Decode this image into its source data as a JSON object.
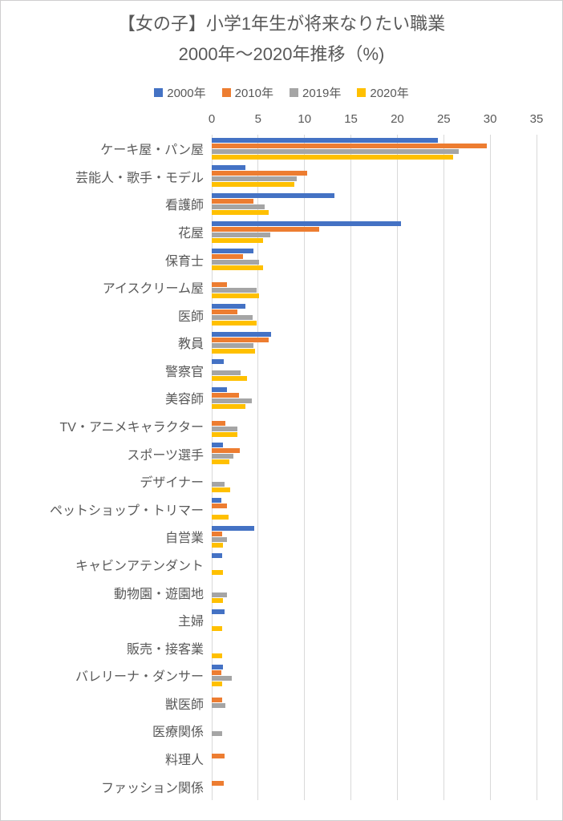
{
  "title": {
    "line1": "【女の子】小学1年生が将来なりたい職業",
    "line2": "2000年～2020年推移（%)"
  },
  "legend": [
    {
      "label": "2000年",
      "color": "#4472C4"
    },
    {
      "label": "2010年",
      "color": "#ED7D31"
    },
    {
      "label": "2019年",
      "color": "#A5A5A5"
    },
    {
      "label": "2020年",
      "color": "#FFC000"
    }
  ],
  "colors": {
    "text": "#595959",
    "gridline": "#D9D9D9",
    "series_2000": "#4472C4",
    "series_2010": "#ED7D31",
    "series_2019": "#A5A5A5",
    "series_2020": "#FFC000"
  },
  "chart_data": {
    "type": "bar",
    "orientation": "horizontal",
    "title": "【女の子】小学1年生が将来なりたい職業 2000年～2020年推移（%)",
    "xlabel": "",
    "ylabel": "",
    "xlim": [
      0,
      35
    ],
    "xticks": [
      0,
      5,
      10,
      15,
      20,
      25,
      30,
      35
    ],
    "grid": true,
    "legend_position": "top",
    "categories": [
      "ケーキ屋・パン屋",
      "芸能人・歌手・モデル",
      "看護師",
      "花屋",
      "保育士",
      "アイスクリーム屋",
      "医師",
      "教員",
      "警察官",
      "美容師",
      "TV・アニメキャラクター",
      "スポーツ選手",
      "デザイナー",
      "ペットショップ・トリマー",
      "自営業",
      "キャビンアテンダント",
      "動物園・遊園地",
      "主婦",
      "販売・接客業",
      "バレリーナ・ダンサー",
      "獣医師",
      "医療関係",
      "料理人",
      "ファッション関係"
    ],
    "series": [
      {
        "name": "2000年",
        "color": "#4472C4",
        "values": [
          24.4,
          3.6,
          13.2,
          20.4,
          4.5,
          0,
          3.6,
          6.4,
          1.3,
          1.6,
          0,
          1.2,
          0,
          1.0,
          4.6,
          1.1,
          0,
          1.4,
          0,
          1.2,
          0,
          0,
          0,
          0
        ]
      },
      {
        "name": "2010年",
        "color": "#ED7D31",
        "values": [
          29.6,
          10.3,
          4.5,
          11.6,
          3.4,
          1.6,
          2.8,
          6.1,
          0,
          2.9,
          1.5,
          3.0,
          0,
          1.6,
          1.1,
          0,
          0,
          0,
          0,
          1.0,
          1.1,
          0,
          1.4,
          1.3
        ]
      },
      {
        "name": "2019年",
        "color": "#A5A5A5",
        "values": [
          26.6,
          9.2,
          5.7,
          6.3,
          5.1,
          4.8,
          4.4,
          4.5,
          3.1,
          4.3,
          2.8,
          2.3,
          1.4,
          0,
          1.6,
          0,
          1.6,
          0,
          0,
          2.2,
          1.5,
          1.1,
          0,
          0
        ]
      },
      {
        "name": "2020年",
        "color": "#FFC000",
        "values": [
          26.0,
          8.9,
          6.1,
          5.5,
          5.5,
          5.1,
          4.8,
          4.7,
          3.8,
          3.6,
          2.8,
          1.9,
          2.0,
          1.8,
          1.2,
          1.2,
          1.2,
          1.1,
          1.1,
          1.1,
          0,
          0,
          0,
          0
        ]
      }
    ]
  }
}
